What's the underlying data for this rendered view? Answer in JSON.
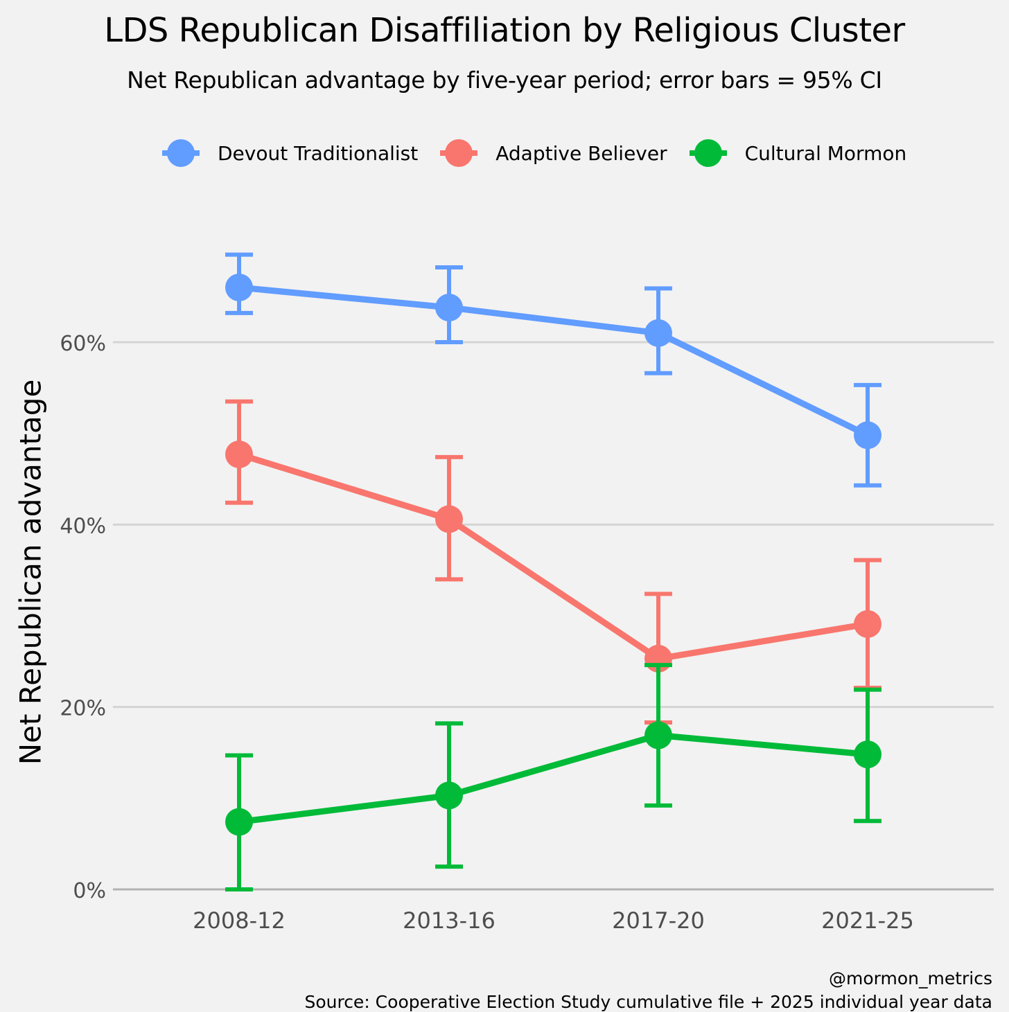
{
  "chart_data": {
    "type": "line",
    "title": "LDS Republican Disaffiliation by Religious Cluster",
    "subtitle": "Net Republican advantage by five-year period; error bars = 95% CI",
    "xlabel": "",
    "ylabel": "Net Republican advantage",
    "categories": [
      "2008-12",
      "2013-16",
      "2017-20",
      "2021-25"
    ],
    "ylim": [
      -1.5,
      75
    ],
    "yticks": [
      0,
      20,
      40,
      60
    ],
    "ytick_labels": [
      "0%",
      "20%",
      "40%",
      "60%"
    ],
    "grid": true,
    "legend_position": "top",
    "series": [
      {
        "name": "Devout Traditionalist",
        "color": "#619CFF",
        "values": [
          66.0,
          63.8,
          61.0,
          49.8
        ],
        "ci_low": [
          63.2,
          60.0,
          56.6,
          44.3
        ],
        "ci_high": [
          69.6,
          68.2,
          65.9,
          55.3
        ]
      },
      {
        "name": "Adaptive Believer",
        "color": "#F8766D",
        "values": [
          47.7,
          40.6,
          25.3,
          29.1
        ],
        "ci_low": [
          42.4,
          34.0,
          18.3,
          22.1
        ],
        "ci_high": [
          53.5,
          47.4,
          32.4,
          36.1
        ]
      },
      {
        "name": "Cultural Mormon",
        "color": "#00BA38",
        "values": [
          7.4,
          10.3,
          16.9,
          14.8
        ],
        "ci_low": [
          0.0,
          2.5,
          9.2,
          7.5
        ],
        "ci_high": [
          14.7,
          18.2,
          24.6,
          21.9
        ]
      }
    ]
  },
  "caption": {
    "handle": "@mormon_metrics",
    "source": "Source: Cooperative Election Study cumulative file + 2025 individual year data"
  }
}
